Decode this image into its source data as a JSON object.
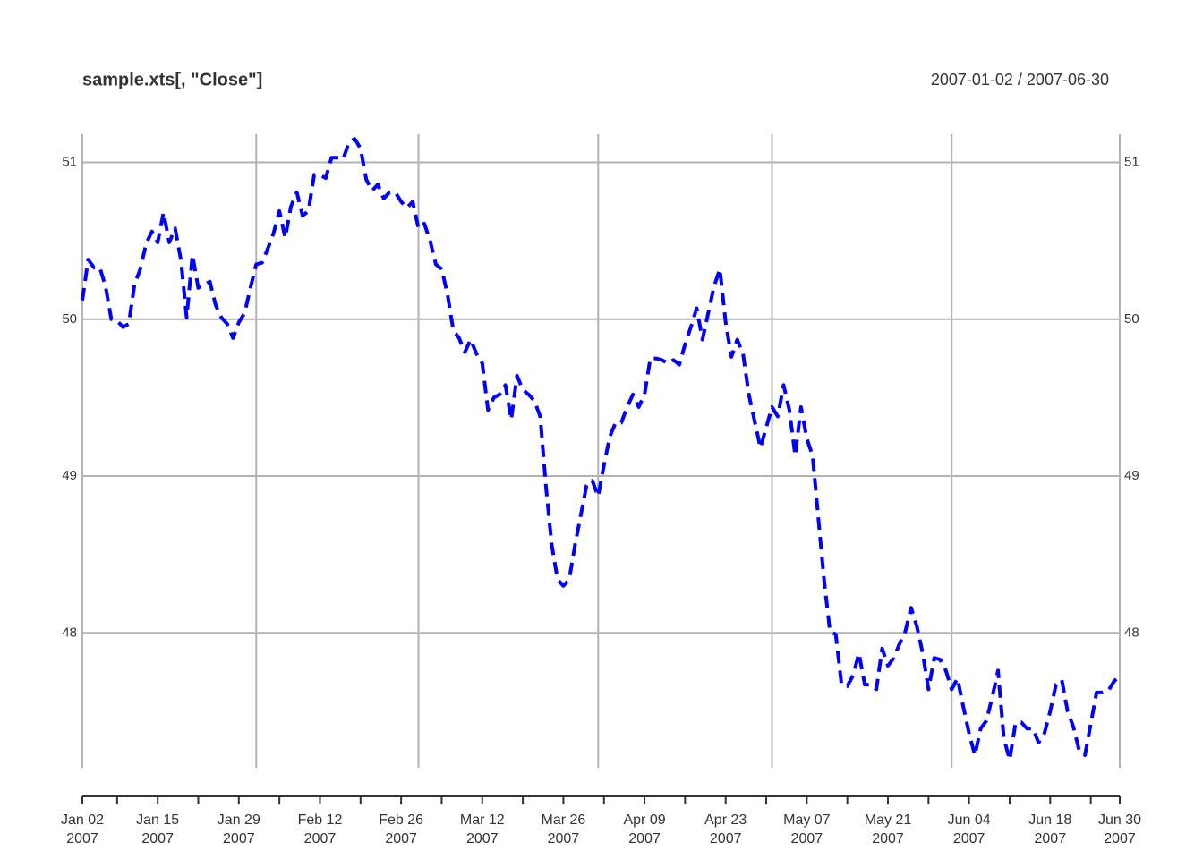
{
  "chart_data": {
    "type": "line",
    "title": "sample.xts[, \"Close\"]",
    "range_label": "2007-01-02 / 2007-06-30",
    "x": [
      "2007-01-02",
      "2007-01-03",
      "2007-01-04",
      "2007-01-05",
      "2007-01-06",
      "2007-01-07",
      "2007-01-08",
      "2007-01-09",
      "2007-01-10",
      "2007-01-11",
      "2007-01-12",
      "2007-01-13",
      "2007-01-14",
      "2007-01-15",
      "2007-01-16",
      "2007-01-17",
      "2007-01-18",
      "2007-01-19",
      "2007-01-20",
      "2007-01-21",
      "2007-01-22",
      "2007-01-23",
      "2007-01-24",
      "2007-01-25",
      "2007-01-26",
      "2007-01-27",
      "2007-01-28",
      "2007-01-29",
      "2007-01-30",
      "2007-01-31",
      "2007-02-01",
      "2007-02-02",
      "2007-02-03",
      "2007-02-04",
      "2007-02-05",
      "2007-02-06",
      "2007-02-07",
      "2007-02-08",
      "2007-02-09",
      "2007-02-10",
      "2007-02-11",
      "2007-02-12",
      "2007-02-13",
      "2007-02-14",
      "2007-02-15",
      "2007-02-16",
      "2007-02-17",
      "2007-02-18",
      "2007-02-19",
      "2007-02-20",
      "2007-02-21",
      "2007-02-22",
      "2007-02-23",
      "2007-02-24",
      "2007-02-25",
      "2007-02-26",
      "2007-02-27",
      "2007-02-28",
      "2007-03-01",
      "2007-03-02",
      "2007-03-03",
      "2007-03-04",
      "2007-03-05",
      "2007-03-06",
      "2007-03-07",
      "2007-03-08",
      "2007-03-09",
      "2007-03-10",
      "2007-03-11",
      "2007-03-12",
      "2007-03-13",
      "2007-03-14",
      "2007-03-15",
      "2007-03-16",
      "2007-03-17",
      "2007-03-18",
      "2007-03-19",
      "2007-03-20",
      "2007-03-21",
      "2007-03-22",
      "2007-03-23",
      "2007-03-24",
      "2007-03-25",
      "2007-03-26",
      "2007-03-27",
      "2007-03-28",
      "2007-03-29",
      "2007-03-30",
      "2007-03-31",
      "2007-04-01",
      "2007-04-02",
      "2007-04-03",
      "2007-04-04",
      "2007-04-05",
      "2007-04-06",
      "2007-04-07",
      "2007-04-08",
      "2007-04-09",
      "2007-04-10",
      "2007-04-11",
      "2007-04-12",
      "2007-04-13",
      "2007-04-14",
      "2007-04-15",
      "2007-04-16",
      "2007-04-17",
      "2007-04-18",
      "2007-04-19",
      "2007-04-20",
      "2007-04-21",
      "2007-04-22",
      "2007-04-23",
      "2007-04-24",
      "2007-04-25",
      "2007-04-26",
      "2007-04-27",
      "2007-04-28",
      "2007-04-29",
      "2007-04-30",
      "2007-05-01",
      "2007-05-02",
      "2007-05-03",
      "2007-05-04",
      "2007-05-05",
      "2007-05-06",
      "2007-05-07",
      "2007-05-08",
      "2007-05-09",
      "2007-05-10",
      "2007-05-11",
      "2007-05-12",
      "2007-05-13",
      "2007-05-14",
      "2007-05-15",
      "2007-05-16",
      "2007-05-17",
      "2007-05-18",
      "2007-05-19",
      "2007-05-20",
      "2007-05-21",
      "2007-05-22",
      "2007-05-23",
      "2007-05-24",
      "2007-05-25",
      "2007-05-26",
      "2007-05-27",
      "2007-05-28",
      "2007-05-29",
      "2007-05-30",
      "2007-05-31",
      "2007-06-01",
      "2007-06-02",
      "2007-06-03",
      "2007-06-04",
      "2007-06-05",
      "2007-06-06",
      "2007-06-07",
      "2007-06-08",
      "2007-06-09",
      "2007-06-10",
      "2007-06-11",
      "2007-06-12",
      "2007-06-13",
      "2007-06-14",
      "2007-06-15",
      "2007-06-16",
      "2007-06-17",
      "2007-06-18",
      "2007-06-19",
      "2007-06-20",
      "2007-06-21",
      "2007-06-22",
      "2007-06-23",
      "2007-06-24",
      "2007-06-25",
      "2007-06-26",
      "2007-06-27",
      "2007-06-28",
      "2007-06-29",
      "2007-06-30"
    ],
    "series": [
      {
        "name": "Close",
        "color": "#0000ff",
        "values": [
          50.12,
          50.38,
          50.33,
          50.33,
          50.21,
          50.0,
          49.99,
          49.95,
          49.97,
          50.22,
          50.32,
          50.48,
          50.56,
          50.49,
          50.68,
          50.49,
          50.58,
          50.38,
          50.01,
          50.41,
          50.2,
          50.22,
          50.24,
          50.09,
          50.01,
          49.97,
          49.88,
          49.98,
          50.04,
          50.2,
          50.35,
          50.36,
          50.45,
          50.55,
          50.69,
          50.52,
          50.72,
          50.81,
          50.66,
          50.69,
          50.92,
          50.92,
          50.9,
          51.03,
          51.03,
          51.02,
          51.13,
          51.15,
          51.09,
          50.89,
          50.82,
          50.86,
          50.77,
          50.81,
          50.81,
          50.75,
          50.71,
          50.75,
          50.58,
          50.61,
          50.5,
          50.35,
          50.32,
          50.16,
          49.93,
          49.88,
          49.79,
          49.87,
          49.78,
          49.72,
          49.42,
          49.5,
          49.52,
          49.58,
          49.36,
          49.64,
          49.55,
          49.52,
          49.48,
          49.38,
          48.93,
          48.56,
          48.34,
          48.3,
          48.34,
          48.56,
          48.75,
          48.94,
          48.97,
          48.87,
          49.07,
          49.25,
          49.34,
          49.34,
          49.44,
          49.52,
          49.44,
          49.52,
          49.75,
          49.75,
          49.74,
          49.72,
          49.74,
          49.71,
          49.84,
          49.95,
          50.07,
          49.87,
          50.04,
          50.21,
          50.32,
          49.98,
          49.76,
          49.87,
          49.78,
          49.52,
          49.35,
          49.18,
          49.31,
          49.44,
          49.38,
          49.58,
          49.42,
          49.13,
          49.44,
          49.24,
          49.13,
          48.73,
          48.33,
          48.01,
          47.99,
          47.67,
          47.66,
          47.73,
          47.87,
          47.67,
          47.67,
          47.64,
          47.9,
          47.79,
          47.84,
          47.93,
          48.01,
          48.16,
          48.04,
          47.87,
          47.64,
          47.84,
          47.83,
          47.76,
          47.64,
          47.71,
          47.53,
          47.36,
          47.22,
          47.39,
          47.44,
          47.59,
          47.76,
          47.33,
          47.19,
          47.42,
          47.43,
          47.39,
          47.39,
          47.3,
          47.36,
          47.5,
          47.67,
          47.7,
          47.5,
          47.4,
          47.25,
          47.22,
          47.42,
          47.62,
          47.62,
          47.63,
          47.69,
          47.73
        ]
      }
    ],
    "xlim": [
      "2007-01-02",
      "2007-06-30"
    ],
    "ylim": [
      47.14,
      51.18
    ],
    "yticks": [
      48,
      49,
      50,
      51
    ],
    "xticks": [
      {
        "value": "2007-01-02",
        "label": "Jan 02\n2007"
      },
      {
        "value": "2007-01-15",
        "label": "Jan 15\n2007"
      },
      {
        "value": "2007-01-29",
        "label": "Jan 29\n2007"
      },
      {
        "value": "2007-02-12",
        "label": "Feb 12\n2007"
      },
      {
        "value": "2007-02-26",
        "label": "Feb 26\n2007"
      },
      {
        "value": "2007-03-12",
        "label": "Mar 12\n2007"
      },
      {
        "value": "2007-03-26",
        "label": "Mar 26\n2007"
      },
      {
        "value": "2007-04-09",
        "label": "Apr 09\n2007"
      },
      {
        "value": "2007-04-23",
        "label": "Apr 23\n2007"
      },
      {
        "value": "2007-05-07",
        "label": "May 07\n2007"
      },
      {
        "value": "2007-05-21",
        "label": "May 21\n2007"
      },
      {
        "value": "2007-06-04",
        "label": "Jun 04\n2007"
      },
      {
        "value": "2007-06-18",
        "label": "Jun 18\n2007"
      },
      {
        "value": "2007-06-30",
        "label": "Jun 30\n2007"
      }
    ],
    "xminorticks": [
      "2007-01-08",
      "2007-01-22",
      "2007-02-05",
      "2007-02-19",
      "2007-03-05",
      "2007-03-19",
      "2007-04-02",
      "2007-04-16",
      "2007-04-30",
      "2007-05-14",
      "2007-05-28",
      "2007-06-11",
      "2007-06-25"
    ],
    "xgrid": [
      "2007-02-01",
      "2007-03-01",
      "2007-04-01",
      "2007-05-01",
      "2007-06-01"
    ],
    "grid": true,
    "line_style": "dashed"
  }
}
